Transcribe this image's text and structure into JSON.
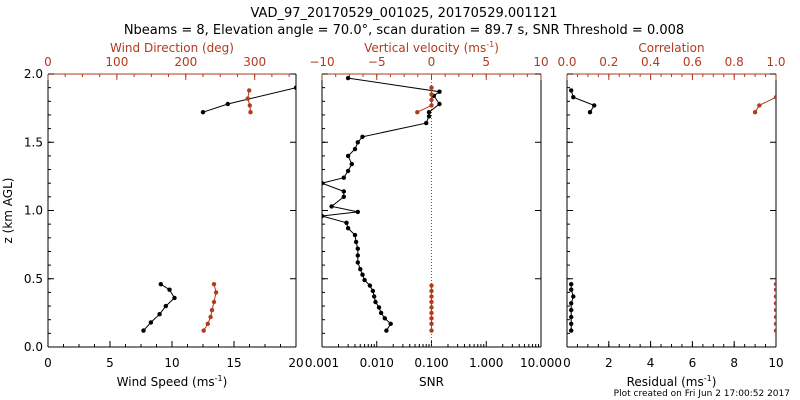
{
  "title_line1": "VAD_97_20170529_001025, 20170529.001121",
  "title_line2": "Nbeams = 8, Elevation angle = 70.0°, scan duration = 89.7 s, SNR Threshold = 0.008",
  "footer": "Plot created on Fri Jun  2 17:00:52 2017",
  "colors": {
    "black": "#000000",
    "red": "#b23a1e"
  },
  "chart_data": [
    {
      "type": "line",
      "ylabel": "z (km AGL)",
      "ylim": [
        0.0,
        2.0
      ],
      "yticks": [
        "0.0",
        "0.5",
        "1.0",
        "1.5",
        "2.0"
      ],
      "bottom_axis": {
        "label": "Wind Speed (ms",
        "label_sup": "-1",
        "label_end": ")",
        "xlim": [
          0,
          20
        ],
        "ticks": [
          "0",
          "5",
          "10",
          "15",
          "20"
        ]
      },
      "top_axis": {
        "label": "Wind Direction (deg)",
        "xlim": [
          0,
          360
        ],
        "ticks": [
          "0",
          "100",
          "200",
          "300"
        ]
      },
      "series": [
        {
          "axis": "bottom",
          "color": "black",
          "points": [
            [
              7.7,
              0.12
            ],
            [
              8.3,
              0.18
            ],
            [
              9.0,
              0.24
            ],
            [
              9.5,
              0.3
            ],
            [
              10.2,
              0.36
            ],
            [
              9.8,
              0.42
            ],
            [
              9.1,
              0.46
            ]
          ],
          "low_points": [
            [
              20,
              1.9
            ],
            [
              14.5,
              1.78
            ],
            [
              12.5,
              1.72
            ]
          ]
        },
        {
          "axis": "top",
          "color": "red",
          "points": [
            [
              226,
              0.12
            ],
            [
              232,
              0.17
            ],
            [
              236,
              0.22
            ],
            [
              238,
              0.27
            ],
            [
              241,
              0.33
            ],
            [
              244,
              0.4
            ],
            [
              241,
              0.46
            ]
          ],
          "low_points": [
            [
              292,
              1.88
            ],
            [
              290,
              1.82
            ],
            [
              293,
              1.77
            ],
            [
              294,
              1.72
            ]
          ]
        }
      ]
    },
    {
      "type": "line",
      "bottom_axis": {
        "label": "SNR",
        "scale": "log",
        "xlim": [
          0.001,
          10.0
        ],
        "ticks": [
          "0.001",
          "0.010",
          "0.100",
          "1.000",
          "10.000"
        ]
      },
      "top_axis": {
        "label": "Vertical velocity (ms",
        "label_sup": "-1",
        "label_end": ")",
        "xlim": [
          -10,
          10
        ],
        "ticks": [
          "−10",
          "−5",
          "0",
          "5",
          "10"
        ]
      },
      "reference_line": {
        "axis": "top",
        "value": 0,
        "style": "dotted",
        "color": "red"
      },
      "series": [
        {
          "axis": "bottom",
          "color": "black",
          "points": [
            [
              0.015,
              0.12
            ],
            [
              0.018,
              0.17
            ],
            [
              0.014,
              0.21
            ],
            [
              0.012,
              0.25
            ],
            [
              0.011,
              0.29
            ],
            [
              0.0095,
              0.33
            ],
            [
              0.009,
              0.37
            ],
            [
              0.0085,
              0.41
            ],
            [
              0.0075,
              0.45
            ],
            [
              0.006,
              0.49
            ],
            [
              0.0055,
              0.53
            ],
            [
              0.005,
              0.57
            ],
            [
              0.0045,
              0.62
            ],
            [
              0.0045,
              0.67
            ],
            [
              0.0045,
              0.72
            ],
            [
              0.0042,
              0.77
            ],
            [
              0.004,
              0.82
            ],
            [
              0.003,
              0.87
            ],
            [
              0.0028,
              0.91
            ],
            [
              0.001,
              0.96
            ],
            [
              0.0045,
              0.99
            ],
            [
              0.0015,
              1.03
            ],
            [
              0.0025,
              1.1
            ],
            [
              0.0025,
              1.14
            ],
            [
              0.001,
              1.2
            ],
            [
              0.0025,
              1.24
            ],
            [
              0.003,
              1.29
            ],
            [
              0.0035,
              1.34
            ],
            [
              0.003,
              1.4
            ],
            [
              0.004,
              1.45
            ],
            [
              0.0045,
              1.5
            ],
            [
              0.0055,
              1.54
            ],
            [
              0.08,
              1.64
            ],
            [
              0.09,
              1.69
            ],
            [
              0.09,
              1.72
            ],
            [
              0.14,
              1.78
            ],
            [
              0.11,
              1.84
            ],
            [
              0.14,
              1.87
            ],
            [
              0.003,
              1.97
            ]
          ]
        },
        {
          "axis": "top",
          "color": "red",
          "points": [
            [
              0,
              0.12
            ],
            [
              0,
              0.17
            ],
            [
              0,
              0.21
            ],
            [
              0,
              0.25
            ],
            [
              0,
              0.29
            ],
            [
              0,
              0.33
            ],
            [
              0,
              0.37
            ],
            [
              0,
              0.41
            ],
            [
              0,
              0.45
            ]
          ],
          "low_points": [
            [
              -1.3,
              1.72
            ],
            [
              0,
              1.77
            ],
            [
              0,
              1.81
            ],
            [
              0,
              1.85
            ],
            [
              0,
              1.9
            ]
          ]
        }
      ]
    },
    {
      "type": "line",
      "bottom_axis": {
        "label": "Residual (ms",
        "label_sup": "-1",
        "label_end": ")",
        "xlim": [
          0,
          10
        ],
        "ticks": [
          "0",
          "2",
          "4",
          "6",
          "8",
          "10"
        ]
      },
      "top_axis": {
        "label": "Correlation",
        "xlim": [
          0.0,
          1.0
        ],
        "ticks": [
          "0.0",
          "0.2",
          "0.4",
          "0.6",
          "0.8",
          "1.0"
        ]
      },
      "series": [
        {
          "axis": "bottom",
          "color": "black",
          "points": [
            [
              0.2,
              0.12
            ],
            [
              0.2,
              0.17
            ],
            [
              0.2,
              0.22
            ],
            [
              0.2,
              0.27
            ],
            [
              0.2,
              0.32
            ],
            [
              0.3,
              0.37
            ],
            [
              0.2,
              0.42
            ],
            [
              0.2,
              0.46
            ]
          ],
          "low_points": [
            [
              1.1,
              1.72
            ],
            [
              1.3,
              1.77
            ],
            [
              0.3,
              1.83
            ],
            [
              0.2,
              1.88
            ]
          ]
        },
        {
          "axis": "top",
          "color": "red",
          "points": [
            [
              1.0,
              0.12
            ],
            [
              1.0,
              0.17
            ],
            [
              1.0,
              0.22
            ],
            [
              1.0,
              0.27
            ],
            [
              1.0,
              0.32
            ],
            [
              1.0,
              0.37
            ],
            [
              1.0,
              0.42
            ],
            [
              1.0,
              0.46
            ]
          ],
          "low_points": [
            [
              0.9,
              1.72
            ],
            [
              0.92,
              1.77
            ],
            [
              1.0,
              1.83
            ]
          ]
        }
      ]
    }
  ]
}
